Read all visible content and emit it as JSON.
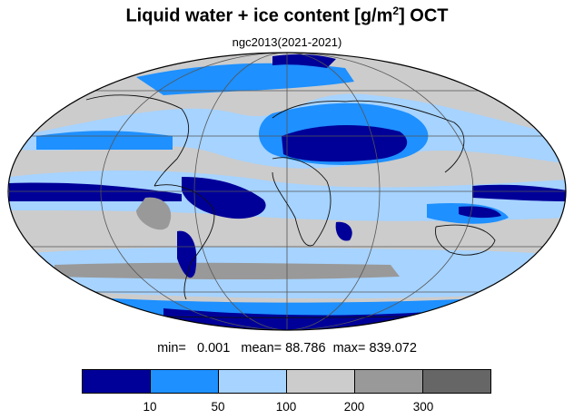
{
  "title": {
    "main": "Liquid water + ice content [g/m",
    "sup": "2",
    "tail": "] OCT"
  },
  "subtitle": "ngc2013(2021-2021)",
  "stats": {
    "min_label": "min=",
    "min": "0.001",
    "mean_label": "mean=",
    "mean": "88.786",
    "max_label": "max=",
    "max": "839.072"
  },
  "colorbar": {
    "colors": [
      "#000099",
      "#1e90ff",
      "#a6d3ff",
      "#cccccc",
      "#999999",
      "#666666"
    ],
    "ticks": [
      "10",
      "50",
      "100",
      "200",
      "300"
    ]
  },
  "map": {
    "projection": "Mollweide",
    "ocean_fill": "#cccccc",
    "outline": "#000000"
  }
}
